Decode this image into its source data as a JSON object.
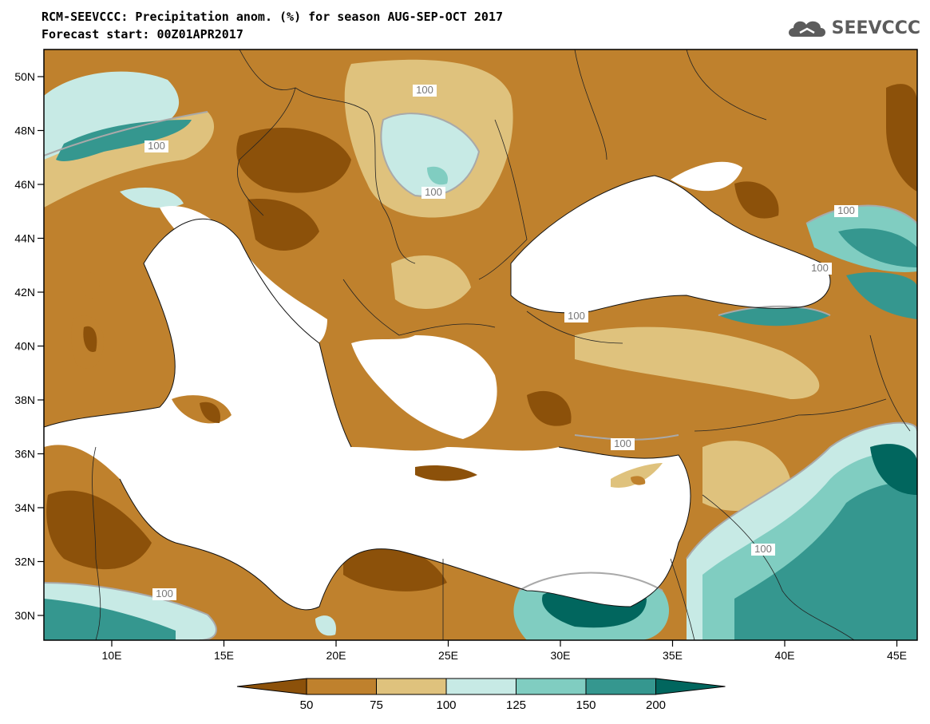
{
  "title": {
    "line1": "RCM-SEEVCCC: Precipitation anom. (%) for season AUG-SEP-OCT 2017",
    "line2": "Forecast start: 00Z01APR2017"
  },
  "logo": {
    "text": "SEEVCCC",
    "icon": "cloud-logo-icon"
  },
  "map": {
    "lon_ticks": [
      "10E",
      "15E",
      "20E",
      "25E",
      "30E",
      "35E",
      "40E",
      "45E"
    ],
    "lat_ticks": [
      "50N",
      "48N",
      "46N",
      "44N",
      "42N",
      "40N",
      "38N",
      "36N",
      "34N",
      "32N",
      "30N"
    ],
    "contour_label": "100",
    "contour_labels": [
      "100",
      "100",
      "100",
      "100",
      "100",
      "100",
      "100",
      "100",
      "100"
    ]
  },
  "colorbar": {
    "labels": [
      "50",
      "75",
      "100",
      "125",
      "150",
      "200"
    ],
    "colors": [
      "#8c510a",
      "#bf812d",
      "#dfc27d",
      "#c7eae5",
      "#80cdc1",
      "#35978f",
      "#01665e"
    ]
  },
  "colors": {
    "water": "#ffffff",
    "very_dry": "#8c510a",
    "dry": "#bf812d",
    "slightly_dry": "#dfc27d",
    "slightly_wet": "#c7eae5",
    "wet": "#80cdc1",
    "very_wet": "#35978f",
    "extreme_wet": "#01665e"
  }
}
